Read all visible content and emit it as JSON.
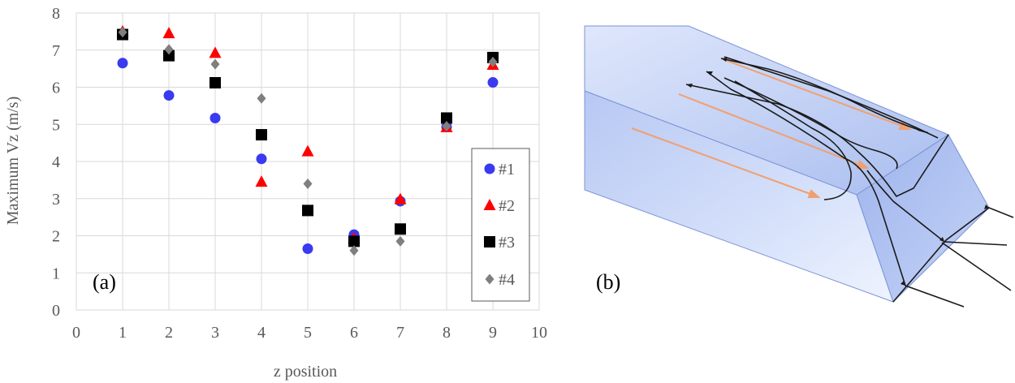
{
  "chart_data": {
    "type": "scatter",
    "xlabel": "z position",
    "ylabel": "Maximum Vz (m/s)",
    "xlim": [
      0,
      10
    ],
    "ylim": [
      0,
      8
    ],
    "x_ticks": [
      "0",
      "1",
      "2",
      "3",
      "4",
      "5",
      "6",
      "7",
      "8",
      "9",
      "10"
    ],
    "y_ticks": [
      "0",
      "1",
      "2",
      "3",
      "4",
      "5",
      "6",
      "7",
      "8"
    ],
    "grid": true,
    "legend_position": "right",
    "annotation": "(a)",
    "series": [
      {
        "name": "#1",
        "marker": "circle",
        "color": "#3a3af0",
        "x": [
          1,
          2,
          3,
          4,
          5,
          6,
          7,
          8,
          9
        ],
        "y": [
          6.65,
          5.78,
          5.17,
          4.07,
          1.65,
          2.03,
          2.93,
          4.93,
          6.13
        ]
      },
      {
        "name": "#2",
        "marker": "triangle",
        "color": "#ff0000",
        "x": [
          1,
          2,
          3,
          4,
          5,
          6,
          7,
          8,
          9
        ],
        "y": [
          7.5,
          7.45,
          6.92,
          3.45,
          4.27,
          1.93,
          2.98,
          4.92,
          6.6
        ]
      },
      {
        "name": "#3",
        "marker": "square",
        "color": "#000000",
        "x": [
          1,
          2,
          3,
          4,
          5,
          6,
          7,
          8,
          9
        ],
        "y": [
          7.42,
          6.85,
          6.12,
          4.72,
          2.68,
          1.85,
          2.18,
          5.17,
          6.8
        ]
      },
      {
        "name": "#4",
        "marker": "diamond",
        "color": "#7f7f7f",
        "x": [
          1,
          2,
          3,
          4,
          5,
          6,
          7,
          8,
          9
        ],
        "y": [
          7.48,
          7.02,
          6.62,
          5.7,
          3.4,
          1.6,
          1.85,
          4.95,
          6.68
        ]
      }
    ]
  },
  "diagram": {
    "label": "(b)",
    "box_color": "#c8d4f4",
    "arrow_color": "#f0a070",
    "streamline_color": "#1a1a1a"
  }
}
